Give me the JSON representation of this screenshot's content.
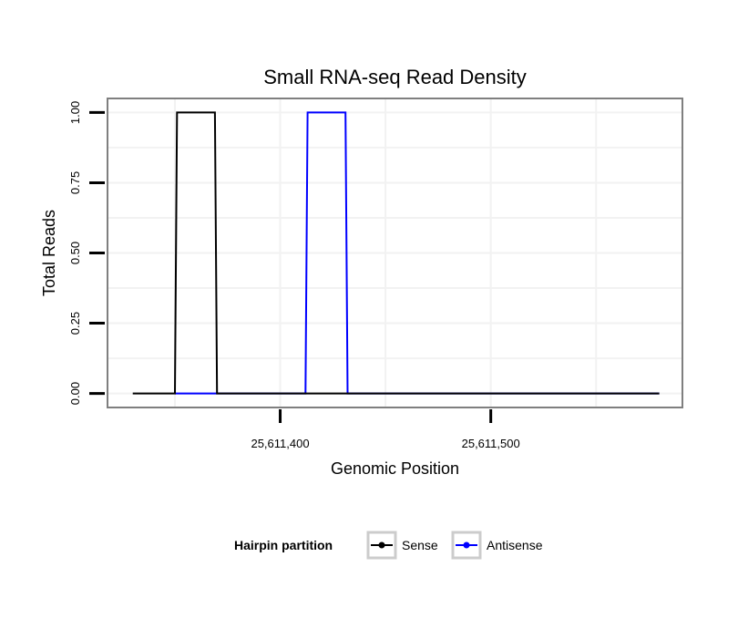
{
  "chart_data": {
    "type": "line",
    "title": "Small RNA-seq Read Density",
    "xlabel": "Genomic Position",
    "ylabel": "Total Reads",
    "xlim": [
      25611318,
      25611591
    ],
    "ylim": [
      -0.05,
      1.05
    ],
    "x_ticks": [
      {
        "value": 25611400,
        "label": "25,611,400"
      },
      {
        "value": 25611500,
        "label": "25,611,500"
      }
    ],
    "y_ticks": [
      {
        "value": 0.0,
        "label": "0.00"
      },
      {
        "value": 0.25,
        "label": "0.25"
      },
      {
        "value": 0.5,
        "label": "0.50"
      },
      {
        "value": 0.75,
        "label": "0.75"
      },
      {
        "value": 1.0,
        "label": "1.00"
      }
    ],
    "grid": true,
    "legend": {
      "title": "Hairpin partition",
      "placement": "bottom"
    },
    "series": [
      {
        "name": "Sense",
        "color": "#000000",
        "x": [
          25611330,
          25611350,
          25611351,
          25611369,
          25611370,
          25611580
        ],
        "y": [
          0,
          0,
          1,
          1,
          0,
          0
        ]
      },
      {
        "name": "Antisense",
        "color": "#0000ff",
        "x": [
          25611350,
          25611370,
          25611371,
          25611391,
          25611392,
          25611412,
          25611413,
          25611431,
          25611432,
          25611580
        ],
        "y": [
          0,
          0,
          0,
          0,
          0,
          0,
          1,
          1,
          0,
          0
        ]
      }
    ]
  }
}
